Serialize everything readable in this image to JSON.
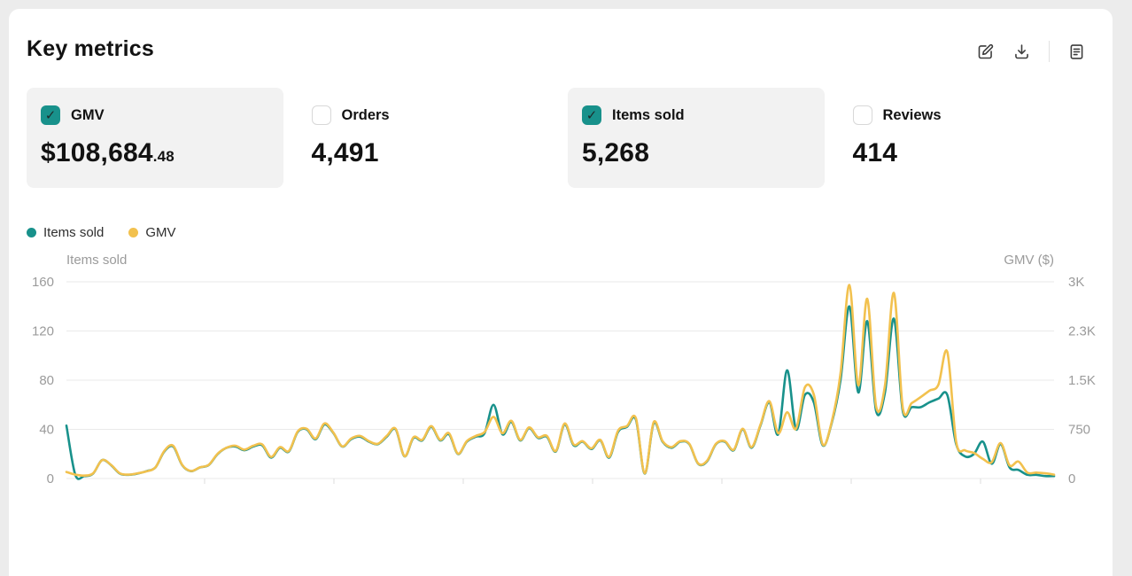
{
  "page": {
    "title": "Key metrics"
  },
  "toolbar": {
    "icons": [
      "edit-icon",
      "download-icon",
      "report-icon"
    ]
  },
  "colors": {
    "accent_teal": "#18918b",
    "accent_yellow": "#f2c14e",
    "selected_card_bg": "#f2f2f2",
    "axis_text": "#9b9b9b",
    "gridline": "#eaeaea"
  },
  "metrics": [
    {
      "label": "GMV",
      "checked": true,
      "selected": true,
      "value_prefix": "$",
      "value": "108,684",
      "value_decimal": ".48"
    },
    {
      "label": "Orders",
      "checked": false,
      "selected": false,
      "value_prefix": "",
      "value": "4,491",
      "value_decimal": ""
    },
    {
      "label": "Items sold",
      "checked": true,
      "selected": true,
      "value_prefix": "",
      "value": "5,268",
      "value_decimal": ""
    },
    {
      "label": "Reviews",
      "checked": false,
      "selected": false,
      "value_prefix": "",
      "value": "414",
      "value_decimal": ""
    }
  ],
  "legend": [
    {
      "label": "Items sold",
      "color": "#18918b"
    },
    {
      "label": "GMV",
      "color": "#f2c14e"
    }
  ],
  "chart_data": {
    "type": "line",
    "points": 112,
    "x_labels_visible": false,
    "grid": true,
    "legend_position": "top-left",
    "left_axis": {
      "title": "Items sold",
      "ticks": [
        "0",
        "40",
        "80",
        "120",
        "160"
      ],
      "range": [
        0,
        160
      ]
    },
    "right_axis": {
      "title": "GMV ($)",
      "ticks": [
        "0",
        "750",
        "1.5K",
        "2.3K",
        "3K"
      ],
      "range": [
        0,
        3000
      ]
    },
    "series": [
      {
        "name": "Items sold",
        "axis": "left",
        "color": "#18918b",
        "values": [
          43,
          3,
          2,
          4,
          15,
          11,
          4,
          3,
          4,
          6,
          9,
          22,
          26,
          11,
          6,
          9,
          11,
          20,
          25,
          26,
          23,
          26,
          27,
          17,
          25,
          22,
          38,
          40,
          32,
          44,
          37,
          26,
          32,
          34,
          30,
          28,
          34,
          40,
          18,
          33,
          31,
          42,
          31,
          36,
          20,
          30,
          34,
          37,
          60,
          36,
          46,
          31,
          41,
          33,
          34,
          22,
          44,
          27,
          30,
          24,
          31,
          17,
          38,
          42,
          48,
          4,
          45,
          30,
          25,
          30,
          28,
          12,
          14,
          28,
          30,
          23,
          40,
          25,
          43,
          62,
          36,
          88,
          40,
          68,
          62,
          27,
          45,
          80,
          140,
          70,
          128,
          55,
          70,
          130,
          55,
          58,
          58,
          62,
          65,
          68,
          28,
          18,
          20,
          30,
          12,
          28,
          9,
          7,
          3,
          3,
          2,
          2
        ]
      },
      {
        "name": "GMV",
        "axis": "right",
        "color": "#f2c14e",
        "values": [
          100,
          60,
          45,
          80,
          280,
          210,
          80,
          60,
          80,
          110,
          170,
          420,
          500,
          210,
          115,
          170,
          210,
          380,
          470,
          500,
          440,
          500,
          520,
          330,
          480,
          420,
          720,
          760,
          610,
          840,
          700,
          490,
          610,
          650,
          570,
          530,
          650,
          760,
          340,
          630,
          590,
          800,
          590,
          690,
          380,
          570,
          650,
          710,
          940,
          690,
          880,
          590,
          780,
          630,
          650,
          420,
          840,
          520,
          570,
          460,
          590,
          330,
          730,
          800,
          920,
          80,
          860,
          570,
          480,
          570,
          530,
          230,
          270,
          530,
          570,
          440,
          760,
          480,
          820,
          1180,
          690,
          1010,
          760,
          1390,
          1280,
          520,
          860,
          1600,
          2950,
          1420,
          2740,
          1100,
          1420,
          2830,
          1080,
          1150,
          1240,
          1340,
          1430,
          1930,
          560,
          430,
          390,
          300,
          250,
          540,
          200,
          260,
          90,
          90,
          80,
          60
        ]
      }
    ]
  }
}
